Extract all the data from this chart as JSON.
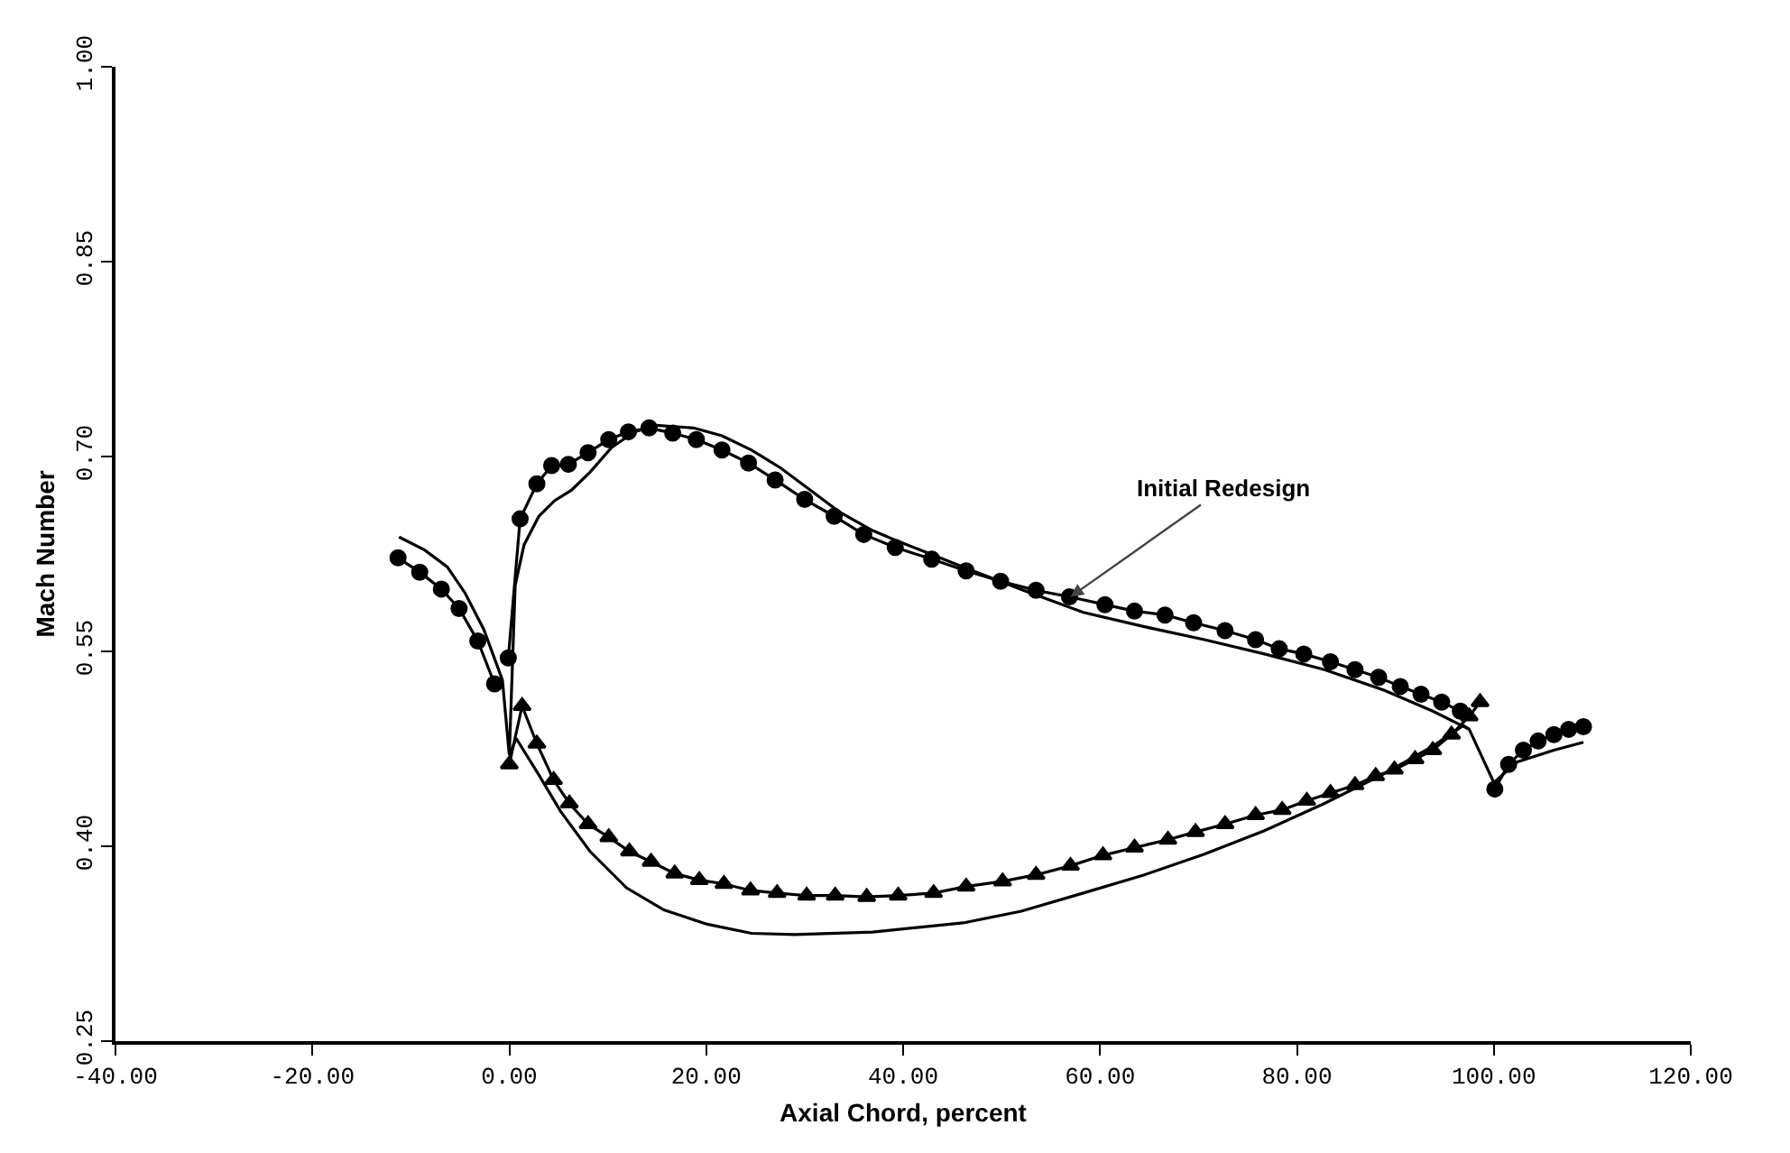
{
  "chart_data": {
    "type": "line",
    "xlabel": "Axial Chord, percent",
    "ylabel": "Mach Number",
    "xlim": [
      -40,
      120
    ],
    "ylim": [
      0.25,
      1.0
    ],
    "xticks": [
      {
        "value": -40,
        "label": "-40.00"
      },
      {
        "value": -20,
        "label": "-20.00"
      },
      {
        "value": 0,
        "label": "0.00"
      },
      {
        "value": 20,
        "label": "20.00"
      },
      {
        "value": 40,
        "label": "40.00"
      },
      {
        "value": 60,
        "label": "60.00"
      },
      {
        "value": 80,
        "label": "80.00"
      },
      {
        "value": 100,
        "label": "100.00"
      },
      {
        "value": 120,
        "label": "120.00"
      }
    ],
    "yticks": [
      {
        "value": 0.25,
        "label": "0.25"
      },
      {
        "value": 0.4,
        "label": "0.40"
      },
      {
        "value": 0.55,
        "label": "0.55"
      },
      {
        "value": 0.7,
        "label": "0.70"
      },
      {
        "value": 0.85,
        "label": "0.85"
      },
      {
        "value": 1.0,
        "label": "1.00"
      }
    ],
    "grid": false,
    "line_style": "solid",
    "annotations": [
      {
        "text": "Initial Redesign",
        "x": 57.0,
        "y": 0.592
      }
    ],
    "series": [
      {
        "color": "#000000",
        "marker": "circle",
        "x": [
          -11.3,
          -9.1,
          -6.9,
          -5.1,
          -3.2,
          -1.5
        ],
        "values": [
          0.622,
          0.611,
          0.598,
          0.583,
          0.558,
          0.525
        ]
      },
      {
        "color": "#000000",
        "marker": "circle",
        "x": [
          -0.1,
          1.1,
          2.8,
          4.3,
          6.0,
          8.0,
          10.1,
          12.1,
          14.2,
          16.6,
          19.0,
          21.6,
          24.3,
          27.0,
          30.0,
          33.0,
          36.0,
          39.2,
          42.9,
          46.4,
          49.9,
          53.5,
          56.9,
          60.5,
          63.5,
          66.6,
          69.5,
          72.7,
          75.8,
          78.2,
          80.7,
          83.4,
          85.9,
          88.3,
          90.5,
          92.6,
          94.7,
          96.6
        ],
        "values": [
          0.545,
          0.652,
          0.679,
          0.693,
          0.694,
          0.703,
          0.713,
          0.719,
          0.722,
          0.718,
          0.713,
          0.705,
          0.695,
          0.682,
          0.667,
          0.654,
          0.64,
          0.63,
          0.621,
          0.612,
          0.604,
          0.597,
          0.592,
          0.586,
          0.581,
          0.578,
          0.572,
          0.566,
          0.559,
          0.552,
          0.548,
          0.542,
          0.536,
          0.53,
          0.523,
          0.517,
          0.511,
          0.504
        ]
      },
      {
        "color": "#000000",
        "marker": "triangle",
        "x": [
          0,
          1.3,
          2.8,
          4.5,
          6.1,
          8.0,
          10.1,
          12.2,
          14.4,
          16.8,
          19.3,
          21.8,
          24.5,
          27.2,
          30.2,
          33.1,
          36.3,
          39.5,
          43.1,
          46.4,
          50.1,
          53.5,
          57.0,
          60.3,
          63.5,
          66.9,
          69.7,
          72.7,
          75.8,
          78.5,
          81.0,
          83.4,
          85.9,
          88.0,
          89.9,
          92.0,
          93.8,
          95.7,
          97.5,
          98.6
        ],
        "values": [
          0.463,
          0.508,
          0.479,
          0.451,
          0.433,
          0.417,
          0.407,
          0.396,
          0.388,
          0.379,
          0.374,
          0.371,
          0.366,
          0.364,
          0.362,
          0.362,
          0.361,
          0.362,
          0.364,
          0.369,
          0.373,
          0.378,
          0.385,
          0.393,
          0.399,
          0.405,
          0.411,
          0.417,
          0.424,
          0.428,
          0.435,
          0.441,
          0.447,
          0.454,
          0.459,
          0.467,
          0.474,
          0.486,
          0.5,
          0.511
        ]
      },
      {
        "color": "#000000",
        "marker": "circle",
        "x": [
          100.1,
          101.5,
          103.0,
          104.5,
          106.1,
          107.6,
          109.1
        ],
        "values": [
          0.444,
          0.463,
          0.474,
          0.481,
          0.486,
          0.49,
          0.492
        ]
      },
      {
        "color": "#000000",
        "marker": "none",
        "x": [
          -11.2,
          -8.6,
          -6.3,
          -4.5,
          -2.6,
          -0.7,
          0,
          0.6,
          1.5,
          3.0,
          4.6,
          6.3,
          8.2,
          10.4,
          12.7,
          14.9,
          18.7,
          21.6,
          24.6,
          27.6,
          30.6,
          33.6,
          36.9,
          39.4,
          46.1,
          52.2,
          58.3,
          64.5,
          70.6,
          76.7,
          82.8,
          88.9,
          93.8,
          97.5,
          100.0,
          102.4,
          106.1,
          109.1
        ],
        "values": [
          0.638,
          0.628,
          0.615,
          0.595,
          0.567,
          0.528,
          0.47,
          0.601,
          0.632,
          0.654,
          0.666,
          0.674,
          0.688,
          0.707,
          0.719,
          0.724,
          0.722,
          0.716,
          0.705,
          0.691,
          0.674,
          0.657,
          0.643,
          0.635,
          0.615,
          0.597,
          0.58,
          0.569,
          0.559,
          0.548,
          0.536,
          0.52,
          0.504,
          0.49,
          0.449,
          0.465,
          0.474,
          0.48
        ]
      },
      {
        "color": "#000000",
        "marker": "none",
        "x": [
          0,
          0.7,
          3.0,
          5.2,
          8.2,
          11.9,
          15.7,
          20.1,
          24.6,
          29.0,
          36.9,
          46.1,
          52.0,
          58.3,
          64.5,
          70.6,
          76.7,
          82.8,
          88.9,
          93.8,
          96.9,
          97.5
        ],
        "values": [
          0.47,
          0.483,
          0.455,
          0.427,
          0.396,
          0.368,
          0.351,
          0.34,
          0.333,
          0.332,
          0.334,
          0.341,
          0.35,
          0.364,
          0.378,
          0.394,
          0.412,
          0.433,
          0.456,
          0.477,
          0.493,
          0.49
        ]
      }
    ]
  }
}
